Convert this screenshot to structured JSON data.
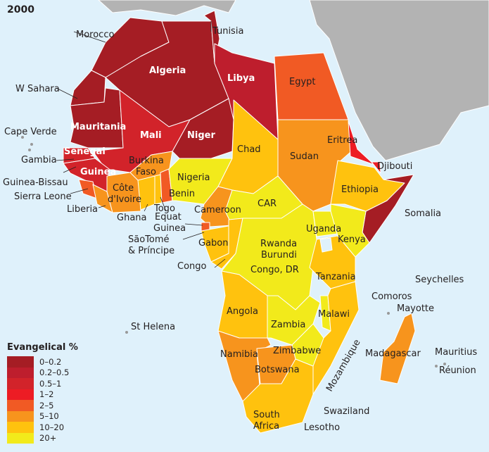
{
  "year": "2000",
  "legend": {
    "title": "Evangelical %",
    "items": [
      {
        "label": "0–0.2",
        "color": "#A51D24"
      },
      {
        "label": "0.2–0.5",
        "color": "#BE1E2D"
      },
      {
        "label": "0.5–1",
        "color": "#D2232A"
      },
      {
        "label": "1–2",
        "color": "#ED1C24"
      },
      {
        "label": "2–5",
        "color": "#F15A24"
      },
      {
        "label": "5–10",
        "color": "#F7941D"
      },
      {
        "label": "10–20",
        "color": "#FFC20E"
      },
      {
        "label": "20+",
        "color": "#F2EA1B"
      }
    ]
  },
  "colors": {
    "ocean": "#DFF1FB",
    "other_land": "#B3B3B3"
  },
  "labels": {
    "morocco": "Morocco",
    "tunisia": "Tunisia",
    "algeria": "Algeria",
    "libya": "Libya",
    "egypt": "Egypt",
    "w_sahara": "W Sahara",
    "cape_verde": "Cape Verde",
    "mauritania": "Mauritania",
    "mali": "Mali",
    "niger": "Niger",
    "senegal": "Senegal",
    "gambia": "Gambia",
    "guinea": "Guinea",
    "guinea_bissau": "Guinea-Bissau",
    "sierra_leone": "Sierra Leone",
    "liberia": "Liberia",
    "cote_divoire_1": "Côte",
    "cote_divoire_2": "d'Ivoire",
    "burkina_1": "Burkina",
    "burkina_2": "Faso",
    "ghana": "Ghana",
    "togo": "Togo",
    "benin": "Benin",
    "nigeria": "Nigeria",
    "chad": "Chad",
    "sudan": "Sudan",
    "eritrea": "Eritrea",
    "djibouti": "Djibouti",
    "ethiopia": "Ethiopia",
    "somalia": "Somalia",
    "cameroon": "Cameroon",
    "car": "CAR",
    "equat_guinea_1": "Equat",
    "equat_guinea_2": "Guinea",
    "sao_tome_1": "SãoTomé",
    "sao_tome_2": "& Príncipe",
    "gabon": "Gabon",
    "congo": "Congo",
    "uganda": "Uganda",
    "kenya": "Kenya",
    "rwanda": "Rwanda",
    "burundi": "Burundi",
    "congo_dr": "Congo, DR",
    "tanzania": "Tanzania",
    "seychelles": "Seychelles",
    "comoros": "Comoros",
    "mayotte": "Mayotte",
    "angola": "Angola",
    "zambia": "Zambia",
    "malawi": "Malawi",
    "st_helena": "St Helena",
    "mozambique": "Mozambique",
    "zimbabwe": "Zimbabwe",
    "namibia": "Namibia",
    "botswana": "Botswana",
    "madagascar": "Madagascar",
    "mauritius": "Mauritius",
    "reunion": "Réunion",
    "swaziland": "Swaziland",
    "south_africa_1": "South",
    "south_africa_2": "Africa",
    "lesotho": "Lesotho"
  }
}
